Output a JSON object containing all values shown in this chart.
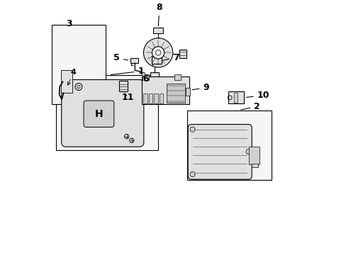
{
  "bg_color": "#ffffff",
  "line_color": "#000000",
  "box_fill": "#f5f5f5",
  "part_fill": "#e0e0e0",
  "dark_fill": "#d0d0d0"
}
